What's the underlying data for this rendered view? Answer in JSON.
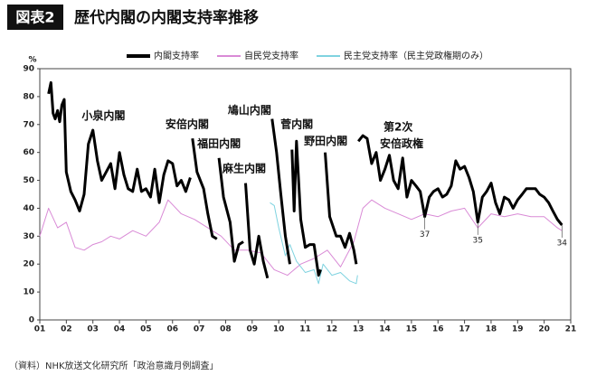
{
  "chart_data": {
    "type": "line",
    "badge": "図表2",
    "title": "歴代内閣の内閣支持率推移",
    "ylabel": "%",
    "source": "（資料）NHK放送文化研究所「政治意識月例調査」",
    "xlim": [
      2001,
      2021
    ],
    "ylim": [
      0,
      90
    ],
    "yticks": [
      0,
      10,
      20,
      30,
      40,
      50,
      60,
      70,
      80,
      90
    ],
    "xticks": [
      {
        "value": 2001,
        "label": "01"
      },
      {
        "value": 2002,
        "label": "02"
      },
      {
        "value": 2003,
        "label": "03"
      },
      {
        "value": 2004,
        "label": "04"
      },
      {
        "value": 2005,
        "label": "05"
      },
      {
        "value": 2006,
        "label": "06"
      },
      {
        "value": 2007,
        "label": "07"
      },
      {
        "value": 2008,
        "label": "08"
      },
      {
        "value": 2009,
        "label": "09"
      },
      {
        "value": 2010,
        "label": "10"
      },
      {
        "value": 2011,
        "label": "11"
      },
      {
        "value": 2012,
        "label": "12"
      },
      {
        "value": 2013,
        "label": "13"
      },
      {
        "value": 2014,
        "label": "14"
      },
      {
        "value": 2015,
        "label": "15"
      },
      {
        "value": 2016,
        "label": "16"
      },
      {
        "value": 2017,
        "label": "17"
      },
      {
        "value": 2018,
        "label": "18"
      },
      {
        "value": 2019,
        "label": "19"
      },
      {
        "value": 2020,
        "label": "20"
      },
      {
        "value": 2021,
        "label": "21"
      }
    ],
    "series": [
      {
        "name": "内閣支持率",
        "color": "#000000",
        "width": 3,
        "x": [
          2001.33,
          2001.42,
          2001.5,
          2001.58,
          2001.67,
          2001.75,
          2001.83,
          2001.92,
          2002.0,
          2002.17,
          2002.33,
          2002.5,
          2002.67,
          2002.83,
          2003.0,
          2003.17,
          2003.33,
          2003.5,
          2003.67,
          2003.83,
          2004.0,
          2004.17,
          2004.33,
          2004.5,
          2004.67,
          2004.83,
          2005.0,
          2005.17,
          2005.33,
          2005.5,
          2005.67,
          2005.83,
          2006.0,
          2006.17,
          2006.33,
          2006.5,
          2006.67,
          2006.71,
          2006.75,
          2006.92,
          2007.17,
          2007.33,
          2007.5,
          2007.67,
          2007.71,
          2007.75,
          2007.92,
          2008.17,
          2008.33,
          2008.5,
          2008.67,
          2008.71,
          2008.75,
          2008.92,
          2009.08,
          2009.25,
          2009.42,
          2009.58,
          2009.67,
          2009.75,
          2009.92,
          2010.08,
          2010.25,
          2010.42,
          2010.46,
          2010.5,
          2010.58,
          2010.67,
          2010.83,
          2011.0,
          2011.17,
          2011.33,
          2011.5,
          2011.58,
          2011.67,
          2011.75,
          2011.92,
          2012.17,
          2012.33,
          2012.5,
          2012.67,
          2012.83,
          2012.92,
          2012.96,
          2013.0,
          2013.17,
          2013.33,
          2013.5,
          2013.67,
          2013.83,
          2014.0,
          2014.17,
          2014.33,
          2014.5,
          2014.67,
          2014.83,
          2015.0,
          2015.17,
          2015.33,
          2015.5,
          2015.67,
          2015.83,
          2016.0,
          2016.17,
          2016.33,
          2016.5,
          2016.67,
          2016.83,
          2017.0,
          2017.17,
          2017.33,
          2017.5,
          2017.67,
          2017.83,
          2018.0,
          2018.17,
          2018.33,
          2018.5,
          2018.67,
          2018.83,
          2019.0,
          2019.17,
          2019.33,
          2019.5,
          2019.67,
          2019.83,
          2020.0,
          2020.17,
          2020.33,
          2020.5,
          2020.67
        ],
        "values": [
          81,
          85,
          74,
          72,
          75,
          71,
          77,
          79,
          53,
          46,
          43,
          39,
          45,
          63,
          68,
          57,
          50,
          53,
          56,
          47,
          60,
          52,
          47,
          46,
          54,
          46,
          47,
          44,
          54,
          42,
          52,
          57,
          56,
          48,
          50,
          46,
          51,
          null,
          65,
          53,
          47,
          38,
          30,
          29,
          null,
          58,
          44,
          35,
          21,
          27,
          28,
          null,
          49,
          25,
          20,
          30,
          21,
          15,
          null,
          72,
          60,
          45,
          30,
          20,
          null,
          61,
          39,
          64,
          36,
          26,
          27,
          27,
          16,
          18,
          null,
          60,
          37,
          30,
          30,
          26,
          31,
          25,
          20,
          null,
          64,
          66,
          65,
          56,
          60,
          50,
          54,
          59,
          50,
          47,
          58,
          44,
          50,
          48,
          46,
          37,
          44,
          46,
          47,
          44,
          45,
          48,
          57,
          54,
          55,
          51,
          46,
          35,
          44,
          46,
          49,
          42,
          38,
          44,
          43,
          40,
          43,
          45,
          47,
          47,
          47,
          45,
          44,
          42,
          39,
          36,
          34
        ]
      },
      {
        "name": "自民党支持率",
        "color": "#d98ad6",
        "width": 1,
        "x": [
          2001.0,
          2001.33,
          2001.67,
          2002.0,
          2002.33,
          2002.67,
          2003.0,
          2003.33,
          2003.67,
          2004.0,
          2004.5,
          2005.0,
          2005.5,
          2005.83,
          2006.33,
          2006.83,
          2007.33,
          2007.83,
          2008.33,
          2008.83,
          2009.33,
          2009.83,
          2010.33,
          2010.83,
          2011.33,
          2011.83,
          2012.33,
          2012.83,
          2013.17,
          2013.5,
          2014.0,
          2014.5,
          2015.0,
          2015.5,
          2016.0,
          2016.5,
          2017.0,
          2017.5,
          2018.0,
          2018.5,
          2019.0,
          2019.5,
          2020.0,
          2020.5,
          2020.67
        ],
        "values": [
          30,
          40,
          33,
          35,
          26,
          25,
          27,
          28,
          30,
          29,
          32,
          30,
          35,
          43,
          38,
          36,
          33,
          30,
          25,
          25,
          24,
          18,
          16,
          20,
          22,
          25,
          19,
          28,
          40,
          43,
          40,
          38,
          36,
          38,
          37,
          39,
          40,
          33,
          38,
          37,
          38,
          37,
          37,
          33,
          32
        ]
      },
      {
        "name": "民主党支持率（民主党政権期のみ）",
        "color": "#7fd3e0",
        "width": 1,
        "x": [
          2009.67,
          2009.83,
          2010.0,
          2010.25,
          2010.42,
          2010.67,
          2011.0,
          2011.33,
          2011.5,
          2011.67,
          2012.0,
          2012.33,
          2012.67,
          2012.92,
          2012.97
        ],
        "values": [
          42,
          41,
          33,
          23,
          27,
          21,
          17,
          18,
          13,
          20,
          16,
          17,
          14,
          13,
          16
        ]
      }
    ],
    "annotations": [
      {
        "text": "小泉内閣",
        "x": 2003.4,
        "y": 73
      },
      {
        "text": "安倍内閣",
        "x": 2006.55,
        "y": 70
      },
      {
        "text": "福田内閣",
        "x": 2007.75,
        "y": 63
      },
      {
        "text": "麻生内閣",
        "x": 2008.7,
        "y": 54
      },
      {
        "text": "鳩山内閣",
        "x": 2008.9,
        "y": 75
      },
      {
        "text": "菅内閣",
        "x": 2010.68,
        "y": 70
      },
      {
        "text": "野田内閣",
        "x": 2011.77,
        "y": 64
      },
      {
        "text": "第2次",
        "x": 2014.5,
        "y": 69
      },
      {
        "text": "安倍政権",
        "x": 2014.63,
        "y": 63
      }
    ],
    "point_labels": [
      {
        "x": 2015.5,
        "y": 37,
        "label": "37"
      },
      {
        "x": 2017.5,
        "y": 35,
        "label": "35"
      },
      {
        "x": 2020.67,
        "y": 34,
        "label": "34"
      }
    ]
  }
}
